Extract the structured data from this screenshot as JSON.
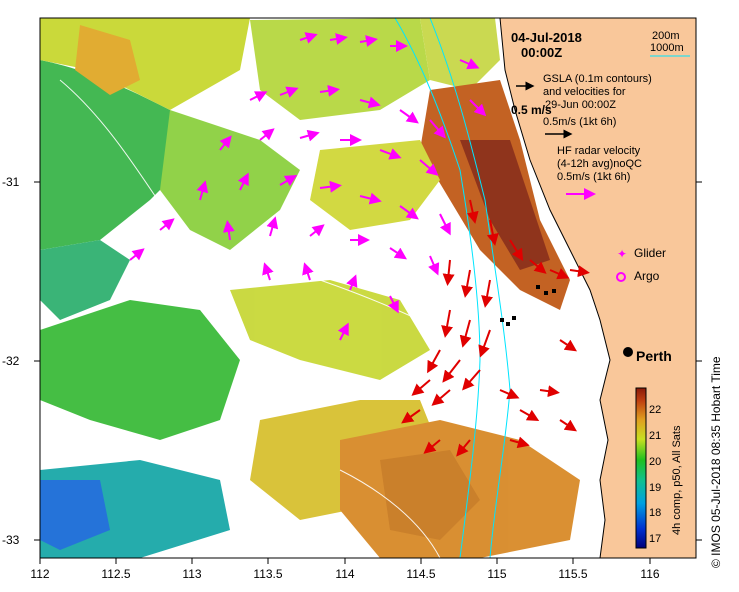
{
  "title": {
    "date": "04-Jul-2018",
    "time": "00:00Z"
  },
  "scale_legend": {
    "line1": "200m",
    "line2": "1000m"
  },
  "gsla_legend": {
    "line1": "GSLA (0.1m contours)",
    "line2": "and velocities for",
    "line3": "29-Jun 00:00Z",
    "line4": "0.5m/s (1kt 6h)",
    "speed_label": "0.5 m/s"
  },
  "hf_legend": {
    "line1": "HF radar velocity",
    "line2": "(4-12h avg)noQC",
    "line3": "0.5m/s (1kt 6h)"
  },
  "markers": {
    "glider": "Glider",
    "argo": "Argo",
    "city": "Perth"
  },
  "x_axis": {
    "ticks": [
      "112",
      "112.5",
      "113",
      "113.5",
      "114",
      "114.5",
      "115",
      "115.5",
      "116"
    ]
  },
  "y_axis": {
    "ticks": [
      "-31",
      "-32",
      "-33"
    ]
  },
  "colorbar": {
    "ticks": [
      "22",
      "21",
      "20",
      "19",
      "18",
      "17"
    ],
    "title": "4h comp, p50, All Sats"
  },
  "credit": "© IMOS 05-Jul-2018 08:35 Hobart Time",
  "colors": {
    "land": "#f9c79a",
    "gsla_arrow": "#ff00ff",
    "hf_arrow": "#e00000",
    "contour_200": "#00e5ff",
    "contour_1000": "#00e5ff"
  }
}
